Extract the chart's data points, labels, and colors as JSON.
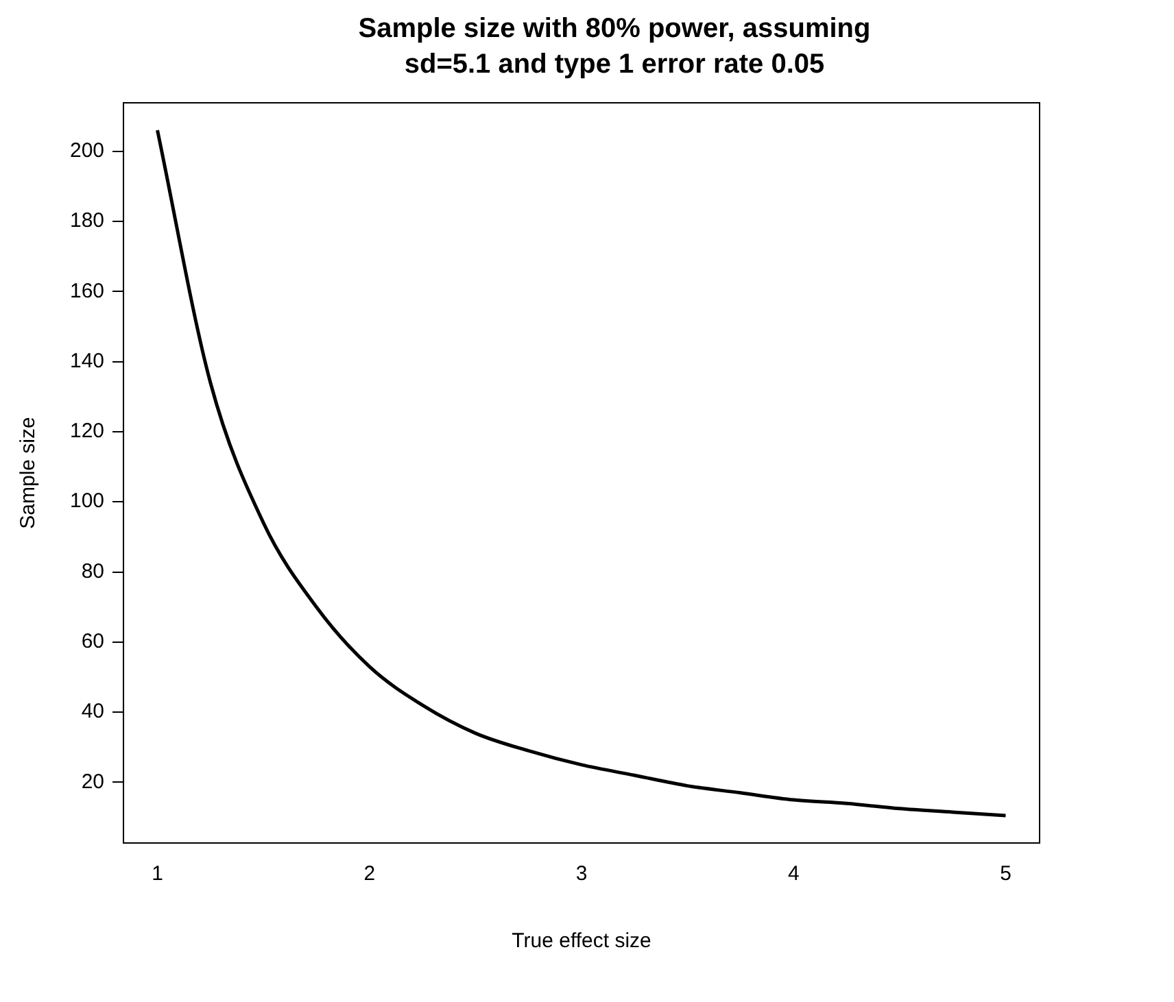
{
  "chart_data": {
    "type": "line",
    "title": "Sample size with 80% power, assuming sd=5.1 and type 1 error rate 0.05",
    "xlabel": "True effect size",
    "ylabel": "Sample size",
    "x": [
      1,
      1.25,
      1.5,
      1.75,
      2,
      2.25,
      2.5,
      2.75,
      3,
      3.25,
      3.5,
      3.75,
      4,
      4.25,
      4.5,
      4.75,
      5
    ],
    "series": [
      {
        "color": "#000000",
        "values": [
          206,
          134,
          94,
          70,
          53,
          42,
          34,
          29,
          25,
          22,
          19,
          17,
          15,
          14,
          12.5,
          11.5,
          10.5
        ]
      }
    ],
    "xlim": [
      0.84,
      5.16
    ],
    "xticks": [
      1,
      2,
      3,
      4,
      5
    ],
    "ylim": [
      2.7,
      213.8
    ],
    "yticks": [
      20,
      40,
      60,
      80,
      100,
      120,
      140,
      160,
      180,
      200
    ],
    "grid": false,
    "legend": false,
    "marker": "none",
    "line_style": "solid"
  }
}
